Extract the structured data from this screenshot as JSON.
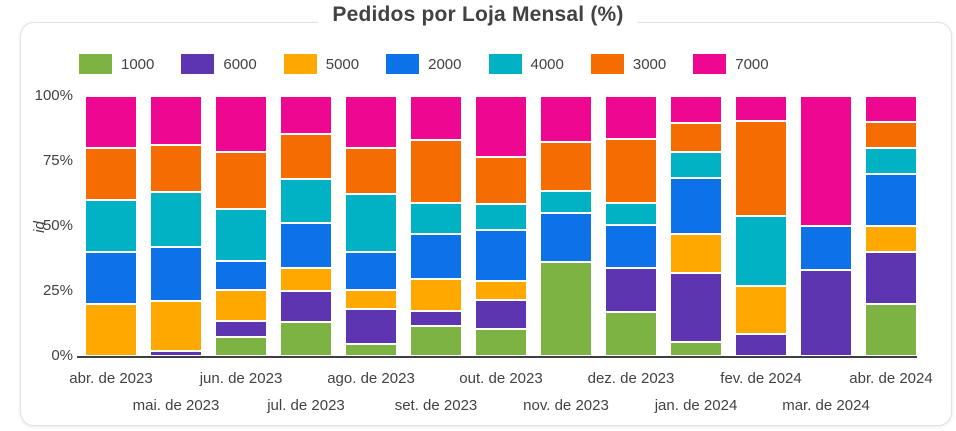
{
  "title": "Pedidos por Loja Mensal (%)",
  "chart_data": {
    "type": "bar",
    "stacked": true,
    "percent_stacked": true,
    "title": "Pedidos por Loja Mensal (%)",
    "ylabel": "id",
    "ylim": [
      0,
      100
    ],
    "yticks": [
      "0%",
      "25%",
      "50%",
      "75%",
      "100%"
    ],
    "grid": false,
    "legend_position": "top",
    "categories": [
      "abr. de 2023",
      "mai. de 2023",
      "jun. de 2023",
      "jul. de 2023",
      "ago. de 2023",
      "set. de 2023",
      "out. de 2023",
      "nov. de 2023",
      "dez. de 2023",
      "jan. de 2024",
      "fev. de 2024",
      "mar. de 2024",
      "abr. de 2024"
    ],
    "series": [
      {
        "name": "1000",
        "color": "#7CB342",
        "values": [
          0,
          0,
          7.5,
          13,
          4.5,
          11.5,
          10.5,
          36,
          17,
          5.5,
          0,
          0,
          20
        ]
      },
      {
        "name": "6000",
        "color": "#5E35B1",
        "values": [
          0,
          2,
          6,
          12,
          13.5,
          6,
          11,
          0,
          17,
          26.5,
          8.5,
          33,
          20
        ]
      },
      {
        "name": "5000",
        "color": "#FFA800",
        "values": [
          20,
          19,
          12,
          9,
          7.5,
          12,
          7.5,
          0,
          0,
          15,
          18.5,
          0,
          10
        ]
      },
      {
        "name": "2000",
        "color": "#0D72E8",
        "values": [
          20,
          21,
          11,
          17,
          14.5,
          17.5,
          19.5,
          19,
          16.5,
          21.5,
          0,
          17,
          20
        ]
      },
      {
        "name": "4000",
        "color": "#00B2C4",
        "values": [
          20,
          21,
          20,
          17,
          22.5,
          12,
          10,
          8.5,
          8.5,
          10,
          27,
          0,
          10
        ]
      },
      {
        "name": "3000",
        "color": "#F56C00",
        "values": [
          20,
          18,
          22,
          17.5,
          17.5,
          24,
          18,
          19,
          24.5,
          11,
          36.5,
          0,
          10
        ]
      },
      {
        "name": "7000",
        "color": "#EE0790",
        "values": [
          20,
          19,
          21.5,
          14.5,
          20,
          17,
          23.5,
          17.5,
          16.5,
          10.5,
          9.5,
          50,
          10
        ]
      }
    ]
  }
}
